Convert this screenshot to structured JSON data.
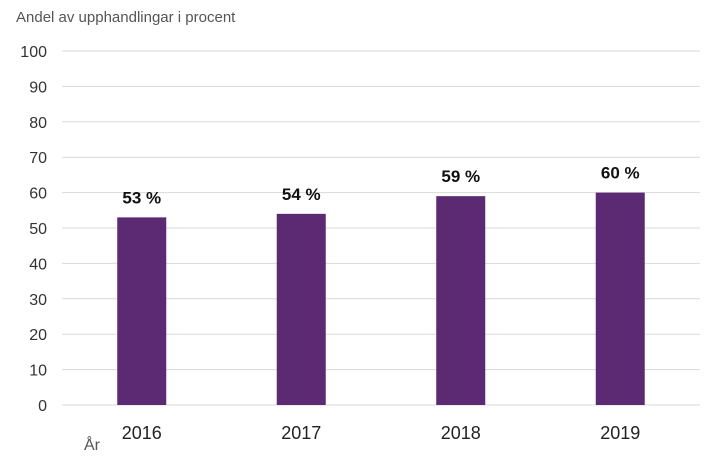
{
  "chart_data": {
    "type": "bar",
    "title": "",
    "ylabel": "Andel av upphandlingar i procent",
    "xlabel": "År",
    "categories": [
      "2016",
      "2017",
      "2018",
      "2019"
    ],
    "values": [
      53,
      54,
      59,
      60
    ],
    "data_labels": [
      "53 %",
      "54 %",
      "59 %",
      "60 %"
    ],
    "ylim": [
      0,
      100
    ],
    "yticks": [
      0,
      10,
      20,
      30,
      40,
      50,
      60,
      70,
      80,
      90,
      100
    ],
    "grid": true,
    "bar_color": "#5c2a72"
  }
}
